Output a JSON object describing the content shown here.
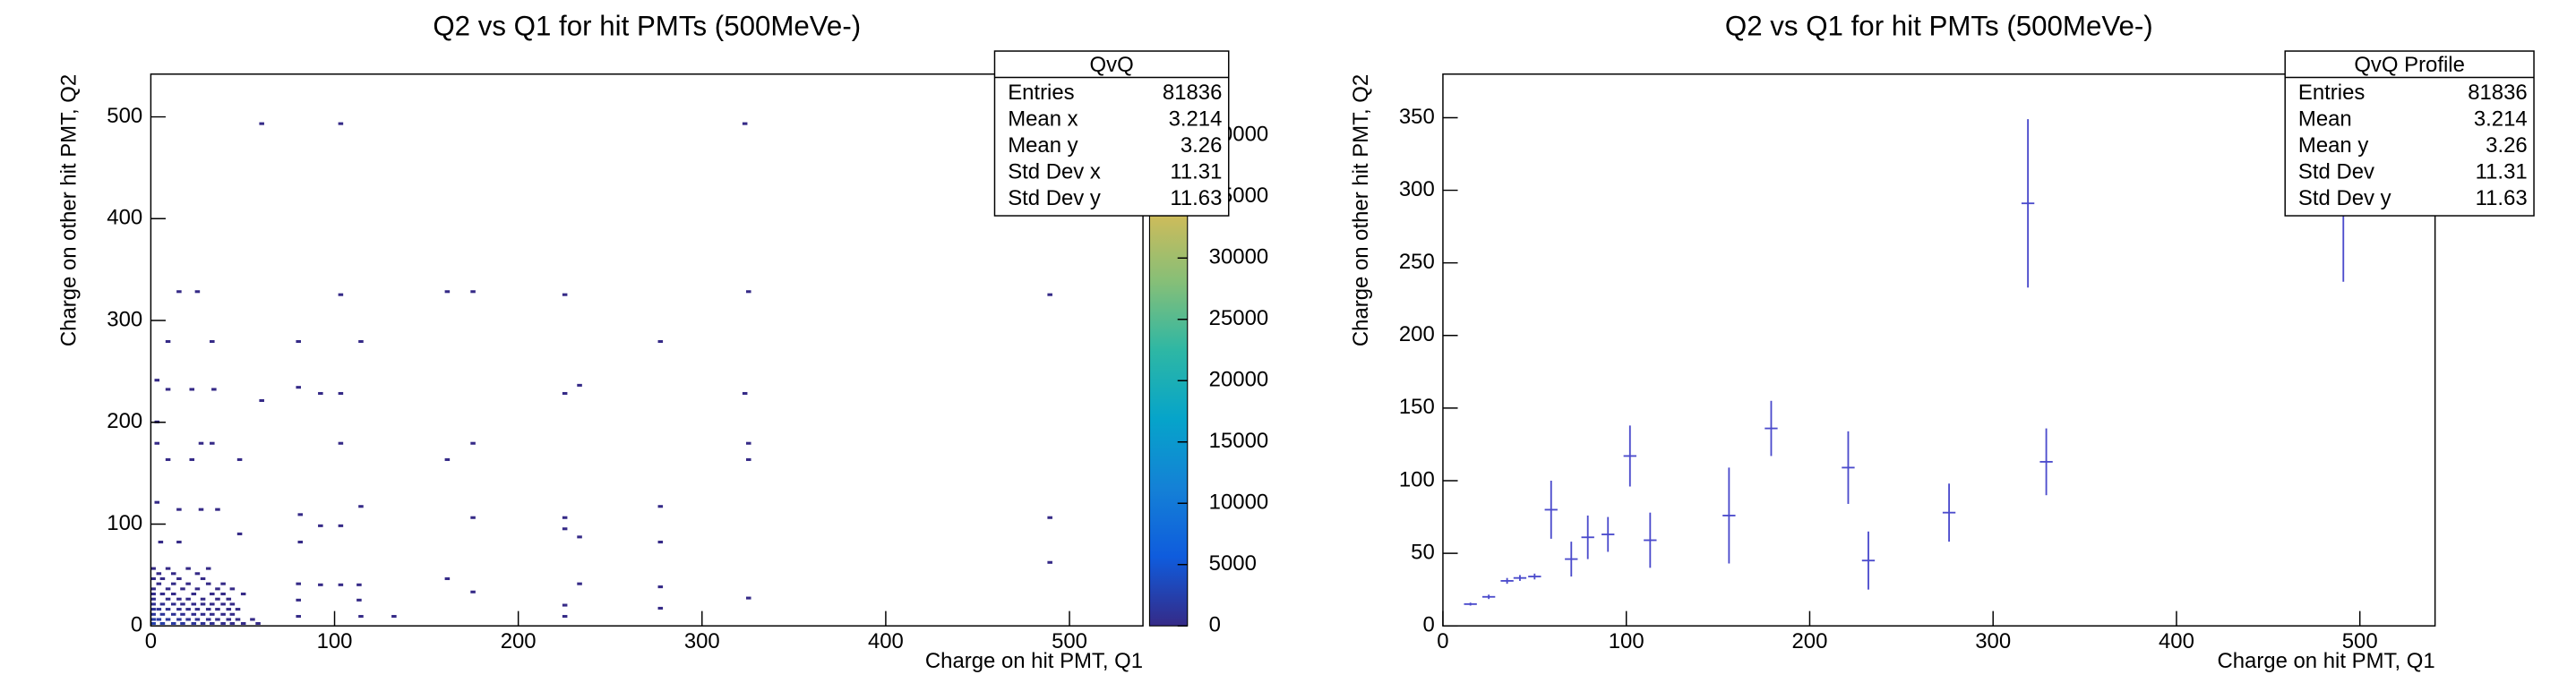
{
  "chart_data": [
    {
      "type": "hist2d",
      "title": "Q2 vs Q1 for hit PMTs (500MeVe-)",
      "x_label": "Charge on hit PMT, Q1",
      "y_label": "Charge on other hit PMT, Q2",
      "xlim": [
        0,
        540
      ],
      "ylim": [
        0,
        542
      ],
      "xticks": [
        0,
        100,
        200,
        300,
        400,
        500
      ],
      "yticks": [
        0,
        100,
        200,
        300,
        400,
        500
      ],
      "bin_width_x": 2.7,
      "bin_width_y": 2.7,
      "zlim": [
        0,
        45000
      ],
      "zticks": [
        0,
        5000,
        10000,
        15000,
        20000,
        25000,
        30000,
        35000,
        40000
      ],
      "palette": [
        "#352a87",
        "#0f5cdd",
        "#1481d6",
        "#06a4ca",
        "#2eb7a4",
        "#87bf77",
        "#d1bb59",
        "#fec832",
        "#f9fb0e"
      ],
      "cells": [
        [
          0,
          1,
          2500
        ],
        [
          5,
          1,
          2100
        ],
        [
          11,
          1,
          1800
        ],
        [
          16,
          1,
          1500
        ],
        [
          22,
          1,
          1200
        ],
        [
          27,
          1,
          900
        ],
        [
          32,
          1,
          700
        ],
        [
          38,
          1,
          500
        ],
        [
          43,
          1,
          300
        ],
        [
          49,
          1,
          150
        ],
        [
          57,
          1,
          60
        ],
        [
          0,
          5,
          1900
        ],
        [
          3,
          5,
          1700
        ],
        [
          8,
          5,
          1400
        ],
        [
          14,
          5,
          1100
        ],
        [
          19,
          5,
          900
        ],
        [
          24,
          5,
          700
        ],
        [
          30,
          5,
          500
        ],
        [
          35,
          5,
          350
        ],
        [
          41,
          5,
          200
        ],
        [
          46,
          5,
          120
        ],
        [
          54,
          5,
          40
        ],
        [
          0,
          10,
          1400
        ],
        [
          5,
          10,
          1200
        ],
        [
          11,
          10,
          900
        ],
        [
          16,
          10,
          700
        ],
        [
          22,
          10,
          500
        ],
        [
          27,
          10,
          380
        ],
        [
          32,
          10,
          260
        ],
        [
          38,
          10,
          150
        ],
        [
          43,
          10,
          80
        ],
        [
          0,
          15,
          1000
        ],
        [
          3,
          15,
          850
        ],
        [
          8,
          15,
          650
        ],
        [
          14,
          15,
          500
        ],
        [
          19,
          15,
          380
        ],
        [
          24,
          15,
          260
        ],
        [
          30,
          15,
          170
        ],
        [
          35,
          15,
          100
        ],
        [
          41,
          15,
          60
        ],
        [
          46,
          15,
          30
        ],
        [
          0,
          20,
          700
        ],
        [
          5,
          20,
          560
        ],
        [
          11,
          20,
          420
        ],
        [
          16,
          20,
          300
        ],
        [
          22,
          20,
          200
        ],
        [
          27,
          20,
          140
        ],
        [
          32,
          20,
          90
        ],
        [
          38,
          20,
          50
        ],
        [
          43,
          20,
          20
        ],
        [
          0,
          25,
          480
        ],
        [
          8,
          25,
          320
        ],
        [
          14,
          25,
          220
        ],
        [
          19,
          25,
          150
        ],
        [
          27,
          25,
          90
        ],
        [
          35,
          25,
          50
        ],
        [
          41,
          25,
          20
        ],
        [
          0,
          30,
          320
        ],
        [
          5,
          30,
          240
        ],
        [
          11,
          30,
          160
        ],
        [
          22,
          30,
          90
        ],
        [
          32,
          30,
          50
        ],
        [
          38,
          30,
          25
        ],
        [
          49,
          30,
          10
        ],
        [
          0,
          35,
          220
        ],
        [
          8,
          35,
          130
        ],
        [
          16,
          35,
          80
        ],
        [
          24,
          35,
          45
        ],
        [
          35,
          35,
          20
        ],
        [
          43,
          35,
          8
        ],
        [
          3,
          40,
          140
        ],
        [
          11,
          40,
          80
        ],
        [
          19,
          40,
          40
        ],
        [
          30,
          40,
          20
        ],
        [
          38,
          40,
          8
        ],
        [
          0,
          45,
          90
        ],
        [
          5,
          45,
          60
        ],
        [
          14,
          45,
          30
        ],
        [
          27,
          45,
          10
        ],
        [
          3,
          50,
          50
        ],
        [
          11,
          50,
          25
        ],
        [
          24,
          50,
          8
        ],
        [
          0,
          55,
          30
        ],
        [
          8,
          55,
          15
        ],
        [
          19,
          55,
          6
        ],
        [
          30,
          55,
          4
        ],
        [
          59,
          492,
          1
        ],
        [
          102,
          492,
          1
        ],
        [
          322,
          492,
          1
        ],
        [
          14,
          327,
          1
        ],
        [
          24,
          327,
          1
        ],
        [
          102,
          324,
          1
        ],
        [
          160,
          327,
          1
        ],
        [
          174,
          327,
          2
        ],
        [
          224,
          324,
          1
        ],
        [
          324,
          327,
          1
        ],
        [
          488,
          324,
          1
        ],
        [
          8,
          278,
          1
        ],
        [
          32,
          278,
          1
        ],
        [
          79,
          278,
          1
        ],
        [
          113,
          278,
          1
        ],
        [
          276,
          278,
          1
        ],
        [
          2,
          240,
          1
        ],
        [
          8,
          231,
          2
        ],
        [
          21,
          231,
          1
        ],
        [
          33,
          231,
          1
        ],
        [
          59,
          220,
          1
        ],
        [
          79,
          233,
          1
        ],
        [
          91,
          227,
          1
        ],
        [
          102,
          227,
          1
        ],
        [
          224,
          227,
          1
        ],
        [
          232,
          235,
          1
        ],
        [
          322,
          227,
          1
        ],
        [
          2,
          199,
          2
        ],
        [
          2,
          178,
          2
        ],
        [
          26,
          178,
          1
        ],
        [
          32,
          178,
          1
        ],
        [
          102,
          178,
          2
        ],
        [
          174,
          178,
          3
        ],
        [
          160,
          162,
          1
        ],
        [
          324,
          178,
          2
        ],
        [
          324,
          162,
          1
        ],
        [
          8,
          162,
          1
        ],
        [
          21,
          162,
          1
        ],
        [
          47,
          162,
          1
        ],
        [
          2,
          120,
          3
        ],
        [
          14,
          113,
          2
        ],
        [
          26,
          113,
          1
        ],
        [
          35,
          113,
          1
        ],
        [
          113,
          116,
          1
        ],
        [
          80,
          108,
          1
        ],
        [
          174,
          105,
          2
        ],
        [
          224,
          105,
          1
        ],
        [
          276,
          116,
          1
        ],
        [
          488,
          105,
          1
        ],
        [
          102,
          97,
          1
        ],
        [
          91,
          97,
          1
        ],
        [
          224,
          94,
          1
        ],
        [
          232,
          86,
          1
        ],
        [
          276,
          81,
          1
        ],
        [
          488,
          61,
          1
        ],
        [
          4,
          81,
          3
        ],
        [
          14,
          81,
          2
        ],
        [
          80,
          81,
          1
        ],
        [
          47,
          89,
          1
        ],
        [
          79,
          40,
          2
        ],
        [
          91,
          39,
          1
        ],
        [
          102,
          39,
          1
        ],
        [
          112,
          39,
          1
        ],
        [
          79,
          24,
          2
        ],
        [
          112,
          24,
          1
        ],
        [
          160,
          45,
          1
        ],
        [
          174,
          32,
          1
        ],
        [
          224,
          19,
          1
        ],
        [
          232,
          40,
          1
        ],
        [
          276,
          37,
          1
        ],
        [
          324,
          26,
          1
        ],
        [
          224,
          8,
          1
        ],
        [
          113,
          8,
          2
        ],
        [
          131,
          8,
          1
        ],
        [
          79,
          8,
          2
        ],
        [
          276,
          16,
          1
        ]
      ],
      "stats": {
        "title": "QvQ",
        "rows": [
          {
            "label": "Entries",
            "value": 81836
          },
          {
            "label": "Mean x",
            "value": 3.214
          },
          {
            "label": "Mean y",
            "value": 3.26
          },
          {
            "label": "Std Dev x",
            "value": 11.31
          },
          {
            "label": "Std Dev y",
            "value": 11.63
          }
        ]
      }
    },
    {
      "type": "profile",
      "title": "Q2 vs Q1 for hit PMTs (500MeVe-)",
      "x_label": "Charge on hit PMT, Q1",
      "y_label": "Charge on other hit PMT, Q2",
      "xlim": [
        0,
        541
      ],
      "ylim": [
        0,
        380
      ],
      "xticks": [
        0,
        100,
        200,
        300,
        400,
        500
      ],
      "yticks": [
        0,
        50,
        100,
        150,
        200,
        250,
        300,
        350
      ],
      "color": "#4b4bcc",
      "bin_width": 7,
      "x": [
        15,
        25,
        35,
        42,
        50,
        59,
        70,
        79,
        90,
        102,
        113,
        156,
        179,
        221,
        232,
        276,
        319,
        329,
        491
      ],
      "y": [
        15,
        20,
        31,
        33,
        34,
        80,
        46,
        61,
        63,
        117,
        59,
        76,
        136,
        109,
        45,
        78,
        291,
        113,
        305
      ],
      "yerr": [
        1,
        1.5,
        2,
        2,
        2,
        20,
        12,
        15,
        12,
        21,
        19,
        33,
        19,
        25,
        20,
        20,
        58,
        23,
        68
      ],
      "stats": {
        "title": "QvQ Profile",
        "rows": [
          {
            "label": "Entries",
            "value": 81836
          },
          {
            "label": "Mean",
            "value": 3.214
          },
          {
            "label": "Mean y",
            "value": 3.26
          },
          {
            "label": "Std Dev",
            "value": 11.31
          },
          {
            "label": "Std Dev y",
            "value": 11.63
          }
        ]
      }
    }
  ]
}
